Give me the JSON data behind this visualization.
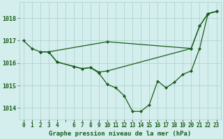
{
  "title": "Graphe pression niveau de la mer (hPa)",
  "bg_color": "#d4eeed",
  "grid_color": "#aed4d0",
  "line_color": "#1a5c1a",
  "marker_color": "#1a5c1a",
  "label_color": "#1a5c1a",
  "xlim": [
    -0.5,
    23.5
  ],
  "ylim": [
    1013.5,
    1018.7
  ],
  "yticks": [
    1014,
    1015,
    1016,
    1017,
    1018
  ],
  "xtick_labels": [
    "0",
    "1",
    "2",
    "3",
    "4",
    "",
    "6",
    "7",
    "8",
    "9",
    "10",
    "11",
    "12",
    "13",
    "14",
    "15",
    "16",
    "17",
    "18",
    "19",
    "20",
    "21",
    "22",
    "23"
  ],
  "series": [
    {
      "x": [
        0,
        1,
        2,
        3,
        10,
        20,
        21,
        22,
        23
      ],
      "y": [
        1017.0,
        1016.65,
        1016.5,
        1016.5,
        1016.95,
        1016.65,
        1017.65,
        1018.2,
        1018.3
      ]
    },
    {
      "x": [
        2,
        3,
        4,
        6,
        7,
        8,
        9,
        10,
        20,
        21,
        22,
        23
      ],
      "y": [
        1016.5,
        1016.5,
        1016.05,
        1015.85,
        1015.75,
        1015.8,
        1015.6,
        1015.65,
        1016.65,
        1017.65,
        1018.2,
        1018.3
      ]
    },
    {
      "x": [
        2,
        3,
        4,
        6,
        7,
        8,
        9,
        10,
        11,
        12,
        13,
        14,
        15,
        16,
        17,
        18,
        19,
        20,
        21,
        22,
        23
      ],
      "y": [
        1016.5,
        1016.5,
        1016.05,
        1015.85,
        1015.75,
        1015.8,
        1015.55,
        1015.05,
        1014.9,
        1014.55,
        1013.85,
        1013.85,
        1014.15,
        1015.2,
        1014.9,
        1015.15,
        1015.5,
        1015.65,
        1016.65,
        1018.2,
        1018.3
      ]
    }
  ]
}
